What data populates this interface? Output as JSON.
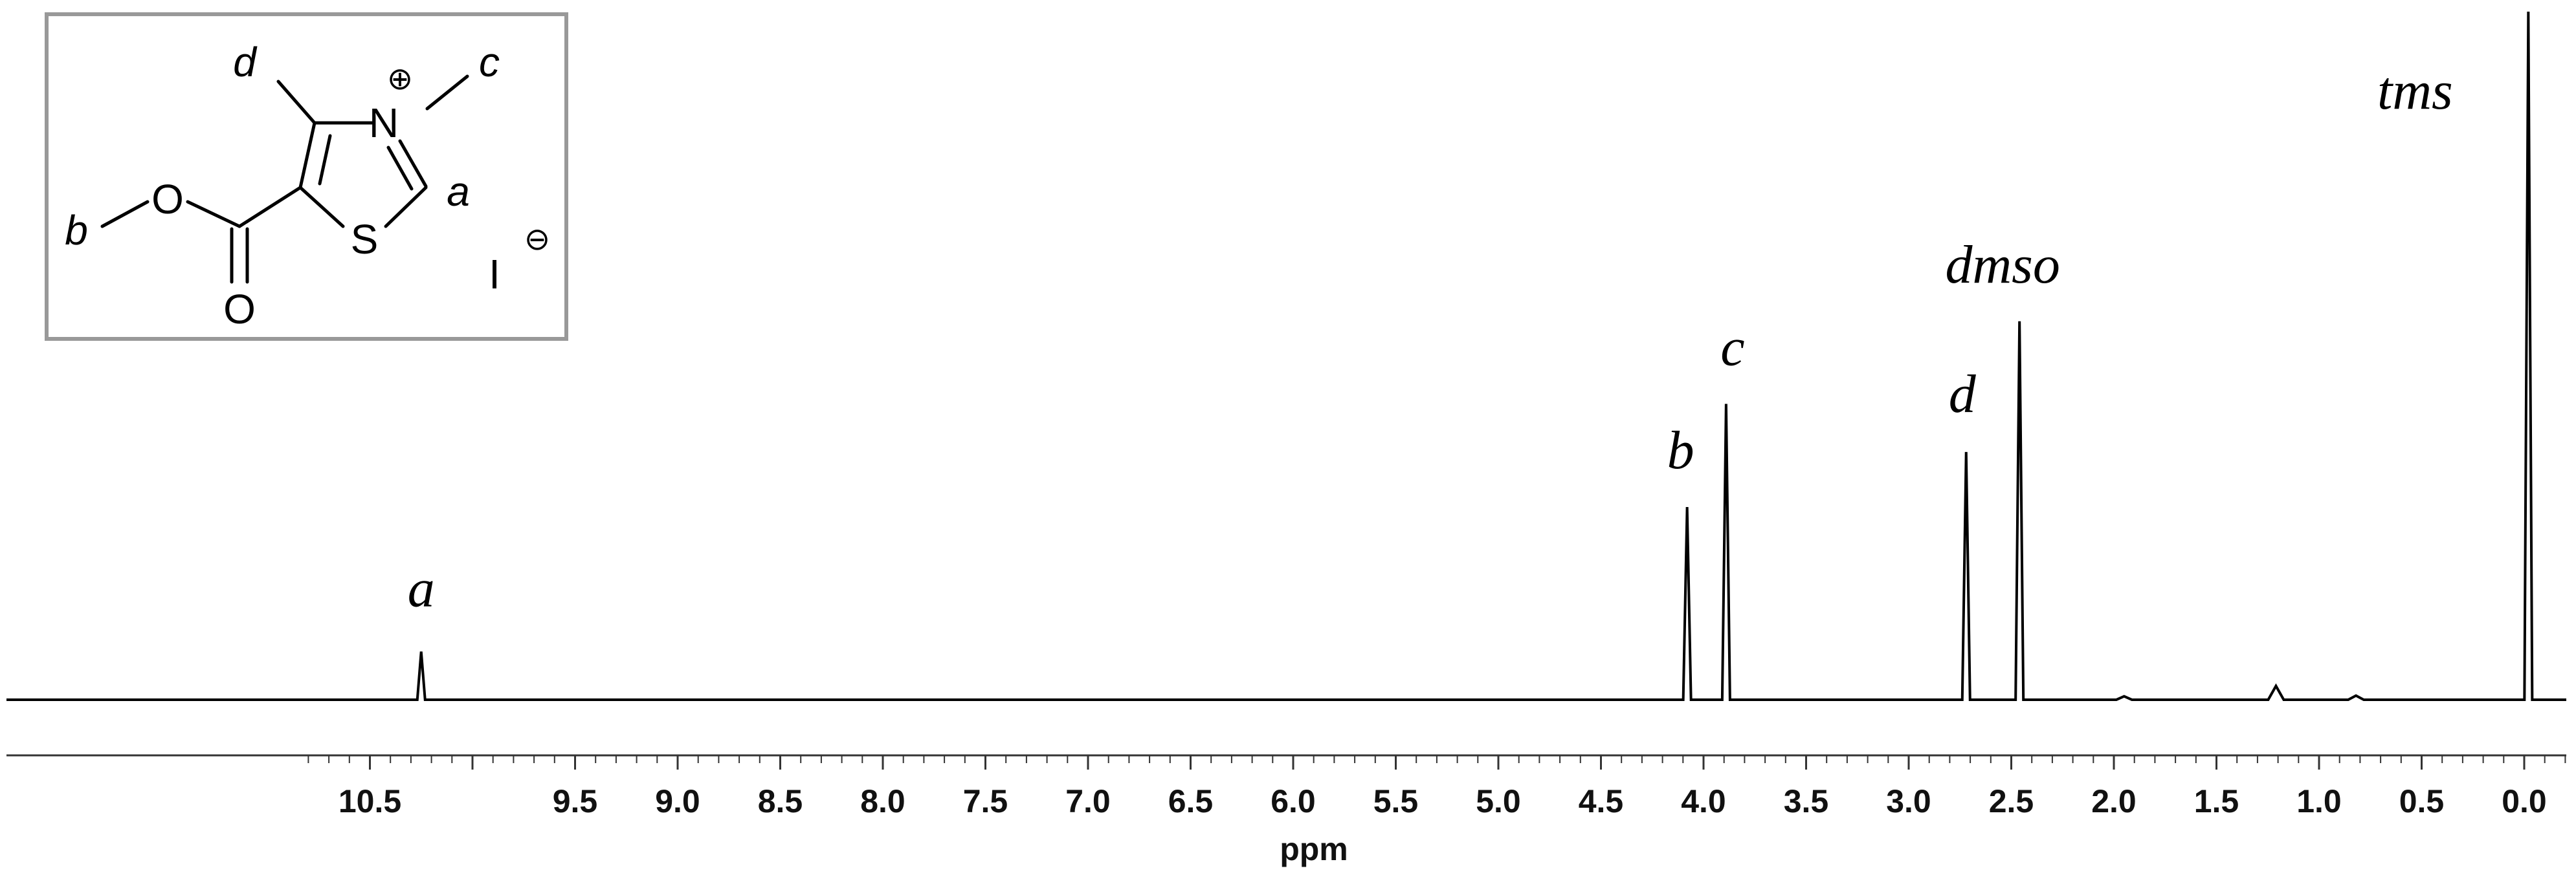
{
  "chart_data": {
    "type": "line",
    "title": "",
    "xlabel": "ppm",
    "ylabel": "",
    "xlim": [
      10.8,
      -0.2
    ],
    "x_reversed": true,
    "ylim": [
      0,
      1.0
    ],
    "grid": false,
    "tick_labels": [
      "10.5",
      "9.5",
      "9.0",
      "8.5",
      "8.0",
      "7.5",
      "7.0",
      "6.5",
      "6.0",
      "5.5",
      "5.0",
      "4.5",
      "4.0",
      "3.5",
      "3.0",
      "2.5",
      "2.0",
      "1.5",
      "1.0",
      "0.5",
      "0.0"
    ],
    "tick_values": [
      10.5,
      9.5,
      9.0,
      8.5,
      8.0,
      7.5,
      7.0,
      6.5,
      6.0,
      5.5,
      5.0,
      4.5,
      4.0,
      3.5,
      3.0,
      2.5,
      2.0,
      1.5,
      1.0,
      0.5,
      0.0
    ],
    "peaks": [
      {
        "label": "a",
        "ppm": 10.25,
        "height": 0.07
      },
      {
        "label": "b",
        "ppm": 4.08,
        "height": 0.28
      },
      {
        "label": "c",
        "ppm": 3.89,
        "height": 0.43
      },
      {
        "label": "d",
        "ppm": 2.72,
        "height": 0.36
      },
      {
        "label": "dmso",
        "ppm": 2.46,
        "height": 0.55
      },
      {
        "label": "tms",
        "ppm": -0.02,
        "height": 1.0
      }
    ],
    "minor_peaks": [
      {
        "ppm": 1.21,
        "height": 0.02
      },
      {
        "ppm": 0.82,
        "height": 0.006
      },
      {
        "ppm": 1.95,
        "height": 0.005
      }
    ]
  },
  "structure": {
    "atoms": {
      "N": "N",
      "S": "S",
      "O_ester": "O",
      "O_carbonyl": "O",
      "iodide": "I"
    },
    "charges": {
      "cation": "⊕",
      "anion": "⊖"
    },
    "labels": {
      "a": "a",
      "b": "b",
      "c": "c",
      "d": "d"
    }
  }
}
